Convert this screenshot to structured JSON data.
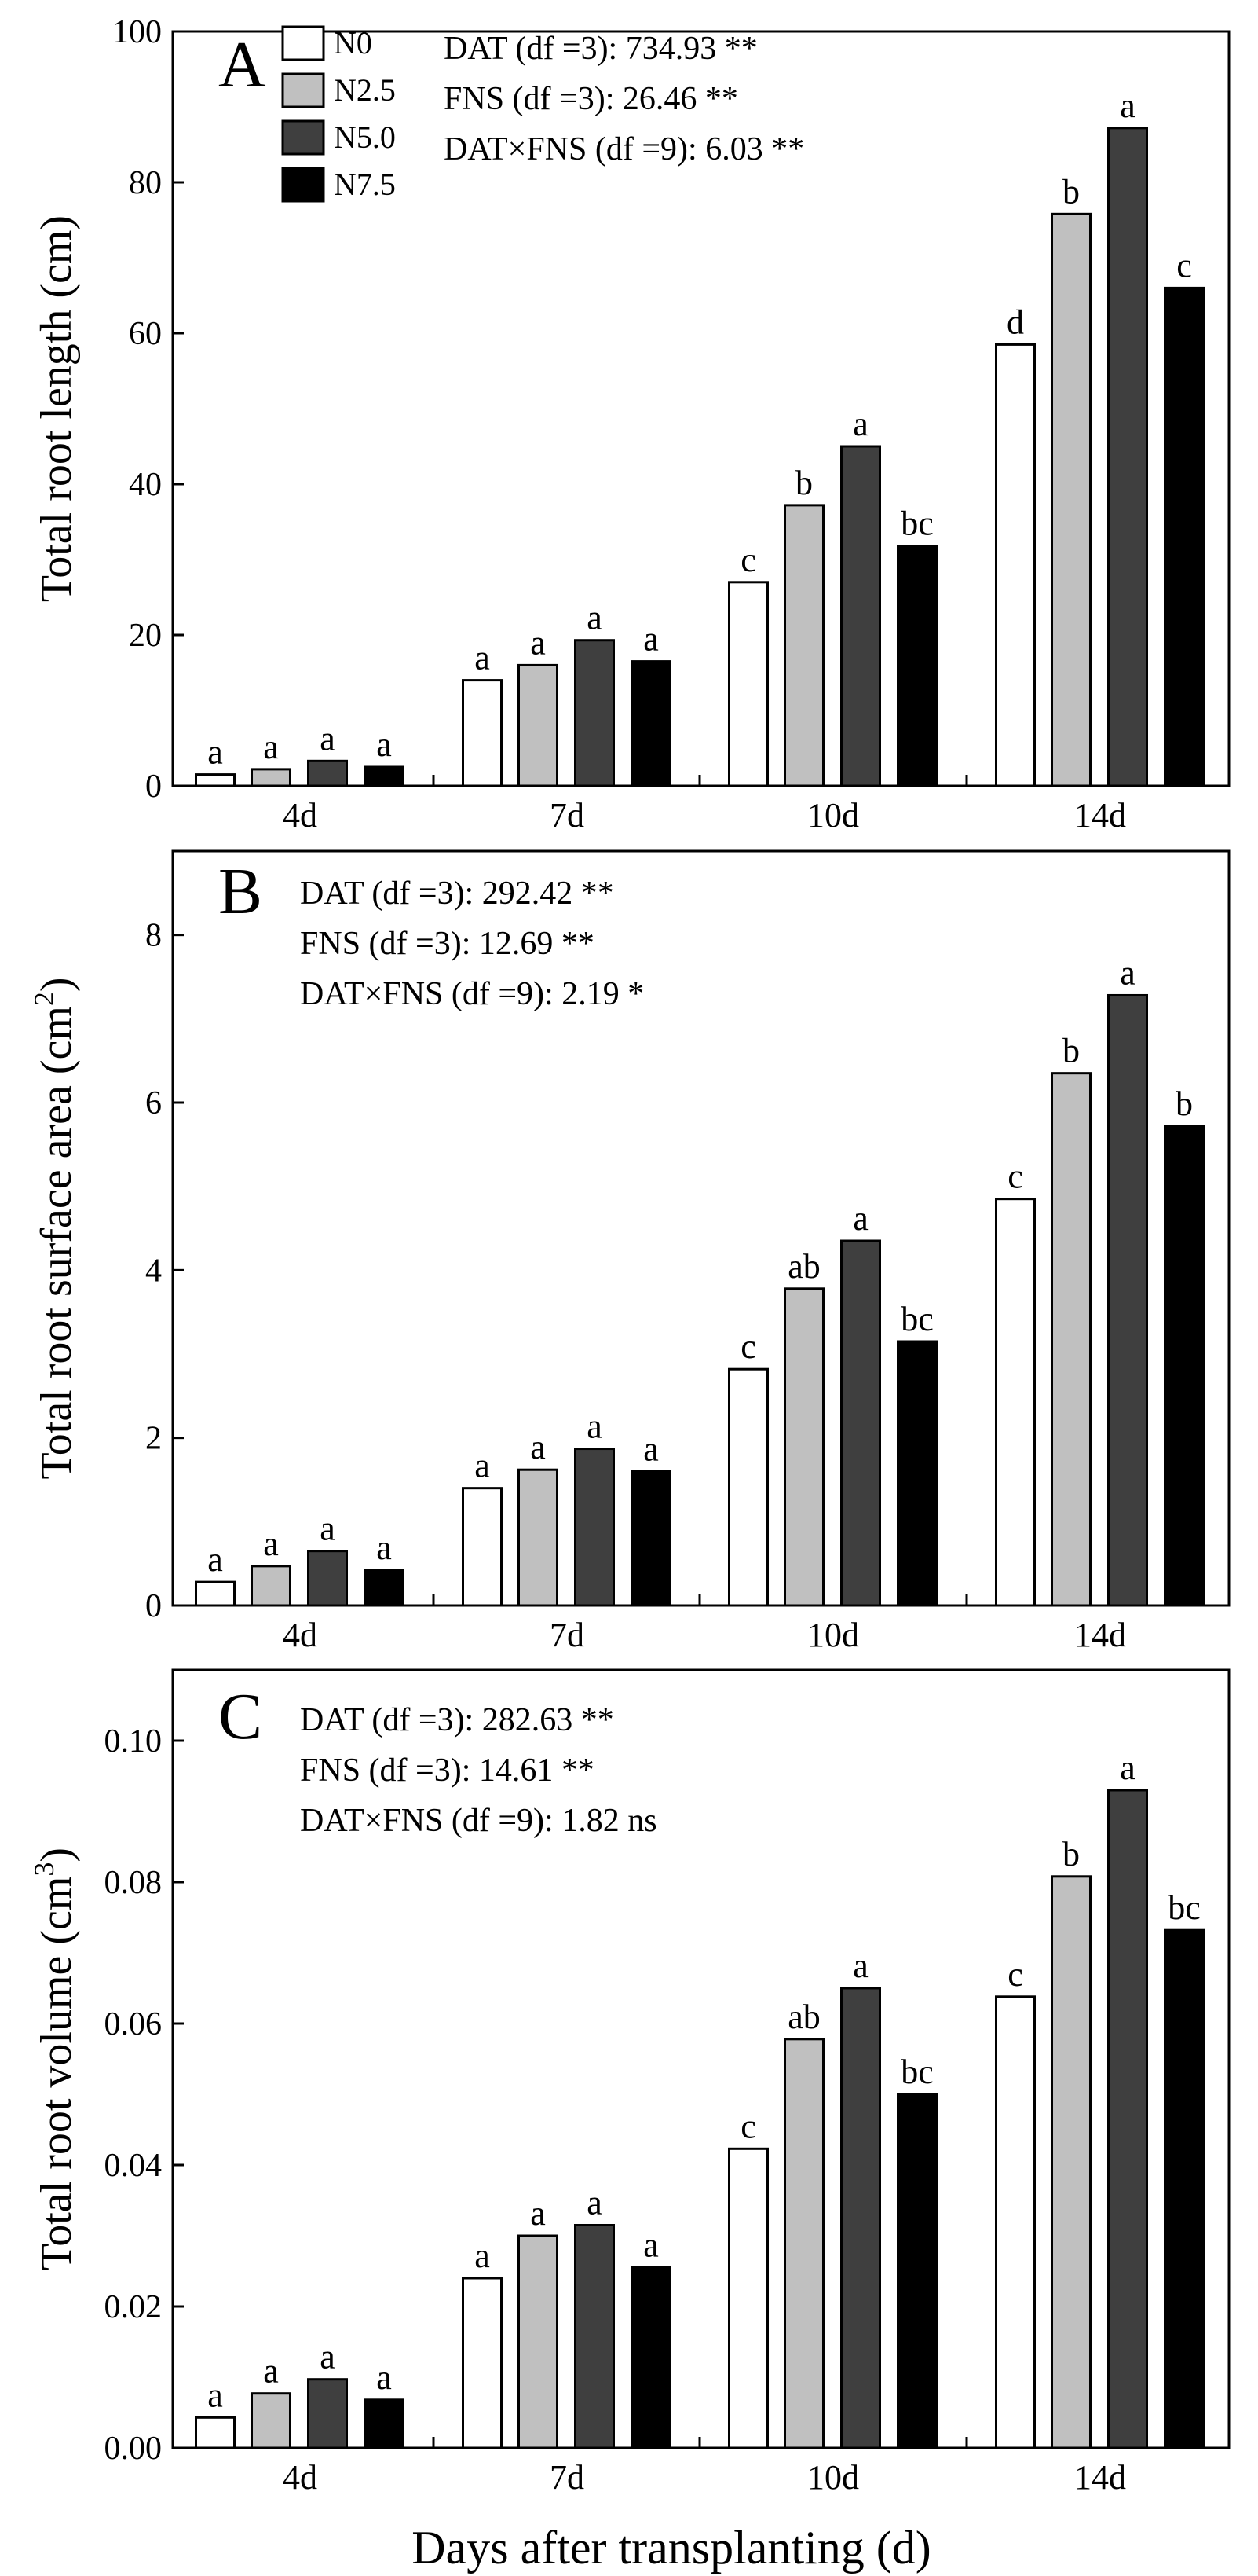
{
  "legend": [
    {
      "label": "N0",
      "color": "#ffffff"
    },
    {
      "label": "N2.5",
      "color": "#c0c0c0"
    },
    {
      "label": "N5.0",
      "color": "#3f3f3f"
    },
    {
      "label": "N7.5",
      "color": "#000000"
    }
  ],
  "xlabel": "Days after transplanting (d)",
  "chart_data": [
    {
      "type": "bar",
      "panel": "A",
      "ylabel": "Total root length (cm)",
      "ylabel_sup": "",
      "ylim": [
        0,
        100
      ],
      "yticks": [
        "0",
        "20",
        "40",
        "60",
        "80",
        "100"
      ],
      "categories": [
        "4d",
        "7d",
        "10d",
        "14d"
      ],
      "series": [
        {
          "name": "N0",
          "values": [
            1.5,
            14.0,
            27.0,
            58.5
          ],
          "letters": [
            "a",
            "a",
            "c",
            "d"
          ]
        },
        {
          "name": "N2.5",
          "values": [
            2.2,
            16.0,
            37.2,
            75.8
          ],
          "letters": [
            "a",
            "a",
            "b",
            "b"
          ]
        },
        {
          "name": "N5.0",
          "values": [
            3.3,
            19.3,
            45.0,
            87.2
          ],
          "letters": [
            "a",
            "a",
            "a",
            "a"
          ]
        },
        {
          "name": "N7.5",
          "values": [
            2.5,
            16.5,
            31.8,
            66.0
          ],
          "letters": [
            "a",
            "a",
            "bc",
            "c"
          ]
        }
      ],
      "stats": [
        "DAT (df =3): 734.93 **",
        "FNS (df =3): 26.46 **",
        "DAT×FNS (df =9): 6.03 **"
      ]
    },
    {
      "type": "bar",
      "panel": "B",
      "ylabel": "Total root surface area (cm",
      "ylabel_sup": "2",
      "ylim": [
        0,
        9
      ],
      "yticks": [
        "0",
        "2",
        "4",
        "6",
        "8"
      ],
      "categories": [
        "4d",
        "7d",
        "10d",
        "14d"
      ],
      "series": [
        {
          "name": "N0",
          "values": [
            0.28,
            1.4,
            2.82,
            4.85
          ],
          "letters": [
            "a",
            "a",
            "c",
            "c"
          ]
        },
        {
          "name": "N2.5",
          "values": [
            0.47,
            1.62,
            3.78,
            6.35
          ],
          "letters": [
            "a",
            "a",
            "ab",
            "b"
          ]
        },
        {
          "name": "N5.0",
          "values": [
            0.65,
            1.87,
            4.35,
            7.28
          ],
          "letters": [
            "a",
            "a",
            "a",
            "a"
          ]
        },
        {
          "name": "N7.5",
          "values": [
            0.42,
            1.6,
            3.15,
            5.72
          ],
          "letters": [
            "a",
            "a",
            "bc",
            "b"
          ]
        }
      ],
      "stats": [
        "DAT (df =3): 292.42 **",
        "FNS (df =3): 12.69 **",
        "DAT×FNS (df =9): 2.19 *"
      ]
    },
    {
      "type": "bar",
      "panel": "C",
      "ylabel": "Total root volume (cm",
      "ylabel_sup": "3",
      "ylim": [
        0,
        0.11
      ],
      "yticks": [
        "0.00",
        "0.02",
        "0.04",
        "0.06",
        "0.08",
        "0.10"
      ],
      "categories": [
        "4d",
        "7d",
        "10d",
        "14d"
      ],
      "series": [
        {
          "name": "N0",
          "values": [
            0.0043,
            0.024,
            0.0423,
            0.0638
          ],
          "letters": [
            "a",
            "a",
            "c",
            "c"
          ]
        },
        {
          "name": "N2.5",
          "values": [
            0.0077,
            0.03,
            0.0578,
            0.0808
          ],
          "letters": [
            "a",
            "a",
            "ab",
            "b"
          ]
        },
        {
          "name": "N5.0",
          "values": [
            0.0097,
            0.0315,
            0.065,
            0.093
          ],
          "letters": [
            "a",
            "a",
            "a",
            "a"
          ]
        },
        {
          "name": "N7.5",
          "values": [
            0.0068,
            0.0255,
            0.05,
            0.0732
          ],
          "letters": [
            "a",
            "a",
            "bc",
            "bc"
          ]
        }
      ],
      "stats": [
        "DAT (df =3): 282.63 **",
        "FNS (df =3): 14.61 **",
        "DAT×FNS (df =9): 1.82 ns"
      ]
    }
  ]
}
